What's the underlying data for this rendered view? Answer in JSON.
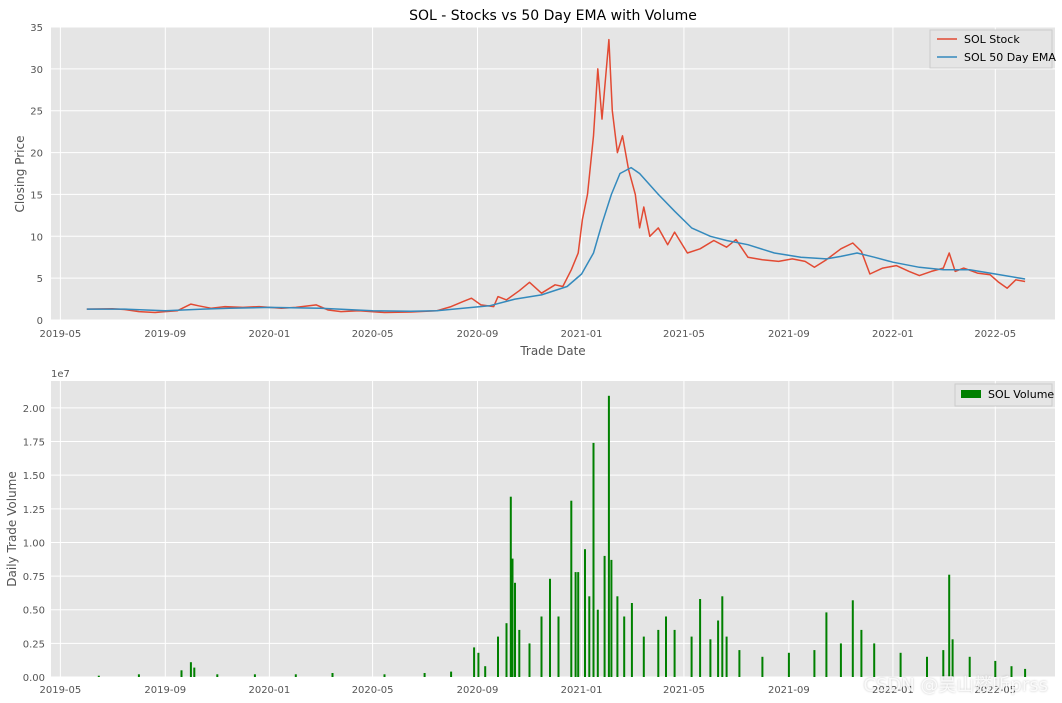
{
  "figure": {
    "watermark": "CSDN @吴山楼听prss"
  },
  "chart_data": [
    {
      "type": "line",
      "title": "SOL - Stocks vs 50 Day EMA with Volume",
      "xlabel": "Trade Date",
      "ylabel": "Closing Price",
      "ylim": [
        0,
        35
      ],
      "xlim": [
        "2019-04-20",
        "2022-07-10"
      ],
      "yticks": [
        0,
        5,
        10,
        15,
        20,
        25,
        30,
        35
      ],
      "xticks": [
        "2019-05",
        "2019-09",
        "2020-01",
        "2020-05",
        "2020-09",
        "2021-01",
        "2021-05",
        "2021-09",
        "2022-01",
        "2022-05"
      ],
      "grid": true,
      "legend_position": "top-right",
      "series": [
        {
          "name": "SOL Stock",
          "color": "#E24A33",
          "points": [
            [
              "2019-06-01",
              1.3
            ],
            [
              "2019-07-01",
              1.35
            ],
            [
              "2019-07-15",
              1.25
            ],
            [
              "2019-08-01",
              1.0
            ],
            [
              "2019-08-20",
              0.9
            ],
            [
              "2019-09-01",
              1.0
            ],
            [
              "2019-09-15",
              1.1
            ],
            [
              "2019-10-01",
              1.9
            ],
            [
              "2019-10-10",
              1.7
            ],
            [
              "2019-10-25",
              1.4
            ],
            [
              "2019-11-10",
              1.6
            ],
            [
              "2019-12-01",
              1.5
            ],
            [
              "2019-12-20",
              1.6
            ],
            [
              "2020-01-15",
              1.4
            ],
            [
              "2020-02-01",
              1.5
            ],
            [
              "2020-02-25",
              1.8
            ],
            [
              "2020-03-10",
              1.2
            ],
            [
              "2020-03-25",
              1.0
            ],
            [
              "2020-04-15",
              1.1
            ],
            [
              "2020-05-15",
              0.9
            ],
            [
              "2020-06-15",
              0.95
            ],
            [
              "2020-07-15",
              1.1
            ],
            [
              "2020-08-01",
              1.6
            ],
            [
              "2020-08-15",
              2.2
            ],
            [
              "2020-08-25",
              2.6
            ],
            [
              "2020-09-05",
              1.8
            ],
            [
              "2020-09-20",
              1.6
            ],
            [
              "2020-09-25",
              2.8
            ],
            [
              "2020-10-05",
              2.4
            ],
            [
              "2020-10-20",
              3.5
            ],
            [
              "2020-11-01",
              4.5
            ],
            [
              "2020-11-15",
              3.2
            ],
            [
              "2020-12-01",
              4.2
            ],
            [
              "2020-12-10",
              4.0
            ],
            [
              "2020-12-20",
              6.0
            ],
            [
              "2020-12-28",
              8.0
            ],
            [
              "2021-01-02",
              12.0
            ],
            [
              "2021-01-08",
              15.0
            ],
            [
              "2021-01-15",
              22.0
            ],
            [
              "2021-01-20",
              30.0
            ],
            [
              "2021-01-25",
              24.0
            ],
            [
              "2021-02-02",
              33.5
            ],
            [
              "2021-02-06",
              25.0
            ],
            [
              "2021-02-12",
              20.0
            ],
            [
              "2021-02-18",
              22.0
            ],
            [
              "2021-02-25",
              18.0
            ],
            [
              "2021-03-05",
              15.0
            ],
            [
              "2021-03-10",
              11.0
            ],
            [
              "2021-03-15",
              13.5
            ],
            [
              "2021-03-22",
              10.0
            ],
            [
              "2021-04-01",
              11.0
            ],
            [
              "2021-04-12",
              9.0
            ],
            [
              "2021-04-20",
              10.5
            ],
            [
              "2021-05-05",
              8.0
            ],
            [
              "2021-05-20",
              8.5
            ],
            [
              "2021-06-05",
              9.5
            ],
            [
              "2021-06-20",
              8.7
            ],
            [
              "2021-07-01",
              9.6
            ],
            [
              "2021-07-15",
              7.5
            ],
            [
              "2021-08-01",
              7.2
            ],
            [
              "2021-08-20",
              7.0
            ],
            [
              "2021-09-05",
              7.3
            ],
            [
              "2021-09-20",
              7.0
            ],
            [
              "2021-10-01",
              6.3
            ],
            [
              "2021-10-15",
              7.2
            ],
            [
              "2021-11-01",
              8.5
            ],
            [
              "2021-11-15",
              9.2
            ],
            [
              "2021-11-25",
              8.2
            ],
            [
              "2021-12-05",
              5.5
            ],
            [
              "2021-12-20",
              6.2
            ],
            [
              "2022-01-05",
              6.5
            ],
            [
              "2022-01-20",
              5.8
            ],
            [
              "2022-02-01",
              5.3
            ],
            [
              "2022-02-15",
              5.8
            ],
            [
              "2022-03-01",
              6.2
            ],
            [
              "2022-03-08",
              8.0
            ],
            [
              "2022-03-15",
              5.8
            ],
            [
              "2022-03-25",
              6.2
            ],
            [
              "2022-04-10",
              5.6
            ],
            [
              "2022-04-25",
              5.4
            ],
            [
              "2022-05-05",
              4.5
            ],
            [
              "2022-05-15",
              3.8
            ],
            [
              "2022-05-25",
              4.8
            ],
            [
              "2022-06-05",
              4.6
            ]
          ]
        },
        {
          "name": "SOL 50 Day EMA",
          "color": "#348ABD",
          "points": [
            [
              "2019-06-01",
              1.3
            ],
            [
              "2019-07-15",
              1.3
            ],
            [
              "2019-09-01",
              1.1
            ],
            [
              "2019-10-15",
              1.3
            ],
            [
              "2019-11-15",
              1.4
            ],
            [
              "2020-01-01",
              1.5
            ],
            [
              "2020-03-01",
              1.4
            ],
            [
              "2020-05-01",
              1.1
            ],
            [
              "2020-06-15",
              1.05
            ],
            [
              "2020-07-15",
              1.1
            ],
            [
              "2020-08-15",
              1.4
            ],
            [
              "2020-09-15",
              1.7
            ],
            [
              "2020-10-15",
              2.5
            ],
            [
              "2020-11-15",
              3.0
            ],
            [
              "2020-12-15",
              4.0
            ],
            [
              "2021-01-01",
              5.5
            ],
            [
              "2021-01-15",
              8.0
            ],
            [
              "2021-01-25",
              11.5
            ],
            [
              "2021-02-05",
              15.0
            ],
            [
              "2021-02-15",
              17.5
            ],
            [
              "2021-02-28",
              18.2
            ],
            [
              "2021-03-10",
              17.5
            ],
            [
              "2021-04-01",
              15.0
            ],
            [
              "2021-04-20",
              13.0
            ],
            [
              "2021-05-10",
              11.0
            ],
            [
              "2021-06-01",
              10.0
            ],
            [
              "2021-06-20",
              9.5
            ],
            [
              "2021-07-15",
              9.0
            ],
            [
              "2021-08-15",
              8.0
            ],
            [
              "2021-09-15",
              7.5
            ],
            [
              "2021-10-15",
              7.3
            ],
            [
              "2021-11-01",
              7.6
            ],
            [
              "2021-11-20",
              8.0
            ],
            [
              "2021-12-10",
              7.5
            ],
            [
              "2022-01-01",
              6.9
            ],
            [
              "2022-02-01",
              6.3
            ],
            [
              "2022-03-01",
              6.0
            ],
            [
              "2022-04-01",
              6.0
            ],
            [
              "2022-05-01",
              5.5
            ],
            [
              "2022-06-05",
              4.9
            ]
          ]
        }
      ]
    },
    {
      "type": "bar",
      "ylabel": "Daily Trade Volume",
      "y_offset_label": "1e7",
      "ylim": [
        0,
        2.2
      ],
      "yticks": [
        "0.00",
        "0.25",
        "0.50",
        "0.75",
        "1.00",
        "1.25",
        "1.50",
        "1.75",
        "2.00"
      ],
      "xlim": [
        "2019-04-20",
        "2022-07-10"
      ],
      "xticks": [
        "2019-05",
        "2019-09",
        "2020-01",
        "2020-05",
        "2020-09",
        "2021-01",
        "2021-05",
        "2021-09",
        "2022-01",
        "2022-05"
      ],
      "grid": true,
      "legend_position": "top-right",
      "series": [
        {
          "name": "SOL Volume",
          "color": "#008000",
          "units": "1e7",
          "points": [
            [
              "2019-06-15",
              0.01
            ],
            [
              "2019-08-01",
              0.02
            ],
            [
              "2019-09-20",
              0.05
            ],
            [
              "2019-10-01",
              0.11
            ],
            [
              "2019-10-05",
              0.07
            ],
            [
              "2019-11-01",
              0.02
            ],
            [
              "2019-12-15",
              0.02
            ],
            [
              "2020-02-01",
              0.02
            ],
            [
              "2020-03-15",
              0.03
            ],
            [
              "2020-05-15",
              0.02
            ],
            [
              "2020-07-01",
              0.03
            ],
            [
              "2020-08-01",
              0.04
            ],
            [
              "2020-08-28",
              0.22
            ],
            [
              "2020-09-02",
              0.18
            ],
            [
              "2020-09-10",
              0.08
            ],
            [
              "2020-09-25",
              0.3
            ],
            [
              "2020-10-05",
              0.4
            ],
            [
              "2020-10-10",
              1.34
            ],
            [
              "2020-10-12",
              0.88
            ],
            [
              "2020-10-15",
              0.7
            ],
            [
              "2020-10-20",
              0.35
            ],
            [
              "2020-11-01",
              0.25
            ],
            [
              "2020-11-15",
              0.45
            ],
            [
              "2020-11-25",
              0.73
            ],
            [
              "2020-12-05",
              0.45
            ],
            [
              "2020-12-20",
              1.31
            ],
            [
              "2020-12-25",
              0.78
            ],
            [
              "2020-12-28",
              0.78
            ],
            [
              "2021-01-05",
              0.95
            ],
            [
              "2021-01-10",
              0.6
            ],
            [
              "2021-01-15",
              1.74
            ],
            [
              "2021-01-20",
              0.5
            ],
            [
              "2021-01-28",
              0.9
            ],
            [
              "2021-02-02",
              2.09
            ],
            [
              "2021-02-05",
              0.87
            ],
            [
              "2021-02-12",
              0.6
            ],
            [
              "2021-02-20",
              0.45
            ],
            [
              "2021-03-01",
              0.55
            ],
            [
              "2021-03-15",
              0.3
            ],
            [
              "2021-04-01",
              0.35
            ],
            [
              "2021-04-10",
              0.45
            ],
            [
              "2021-04-20",
              0.35
            ],
            [
              "2021-05-10",
              0.3
            ],
            [
              "2021-05-20",
              0.58
            ],
            [
              "2021-06-01",
              0.28
            ],
            [
              "2021-06-10",
              0.42
            ],
            [
              "2021-06-15",
              0.6
            ],
            [
              "2021-06-20",
              0.3
            ],
            [
              "2021-07-05",
              0.2
            ],
            [
              "2021-08-01",
              0.15
            ],
            [
              "2021-09-01",
              0.18
            ],
            [
              "2021-10-01",
              0.2
            ],
            [
              "2021-10-15",
              0.48
            ],
            [
              "2021-11-01",
              0.25
            ],
            [
              "2021-11-15",
              0.57
            ],
            [
              "2021-11-25",
              0.35
            ],
            [
              "2021-12-10",
              0.25
            ],
            [
              "2022-01-10",
              0.18
            ],
            [
              "2022-02-10",
              0.15
            ],
            [
              "2022-03-01",
              0.2
            ],
            [
              "2022-03-08",
              0.76
            ],
            [
              "2022-03-12",
              0.28
            ],
            [
              "2022-04-01",
              0.15
            ],
            [
              "2022-05-01",
              0.12
            ],
            [
              "2022-05-20",
              0.08
            ],
            [
              "2022-06-05",
              0.06
            ]
          ]
        }
      ]
    }
  ]
}
